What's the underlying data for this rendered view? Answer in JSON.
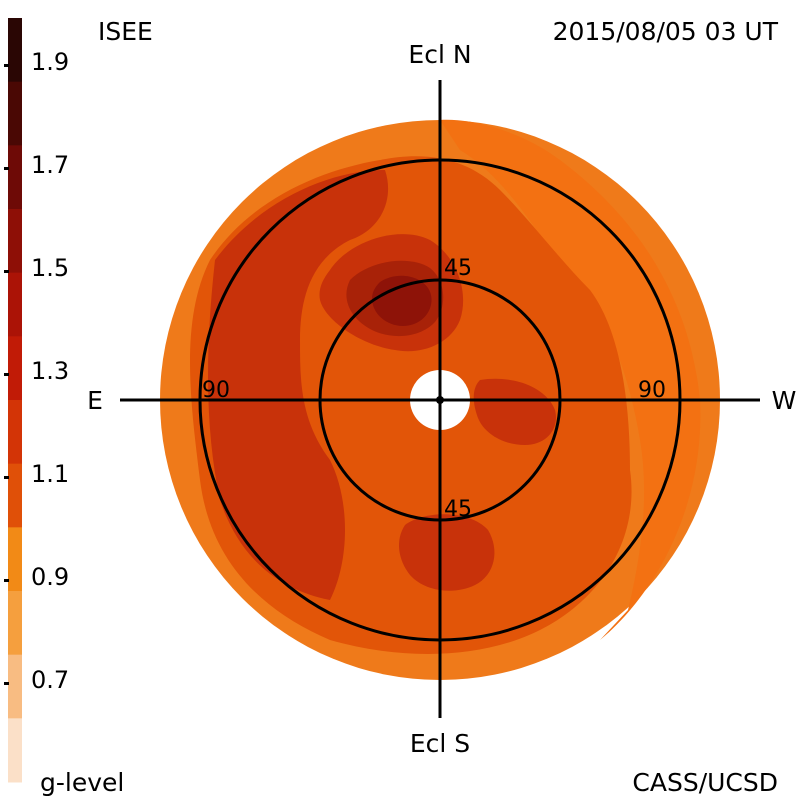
{
  "header": {
    "instrument": "ISEE",
    "timestamp": "2015/08/05 03 UT",
    "credit": "CASS/UCSD"
  },
  "colorbar": {
    "title": "g-level",
    "tick_labels": [
      "1.9",
      "1.7",
      "1.5",
      "1.3",
      "1.1",
      "0.9",
      "0.7"
    ],
    "bands": [
      "#2a0604",
      "#4a0804",
      "#6e0a06",
      "#8e0f06",
      "#ab1306",
      "#c11b06",
      "#d33406",
      "#e05008",
      "#f28a16",
      "#f59f3e",
      "#f8bc82",
      "#fbe0c8"
    ]
  },
  "map": {
    "directions": {
      "north": "Ecl N",
      "south": "Ecl S",
      "east": "E",
      "west": "W"
    },
    "ring_labels": {
      "inner_top": "45",
      "inner_bottom": "45",
      "outer_left": "90",
      "outer_right": "90"
    },
    "colors": {
      "background_disc": "#ef7a1a",
      "western_arc": "#f37112",
      "main_fill": "#e25508",
      "mid_shade": "#d94b08",
      "dark_shade": "#c8320a",
      "deep_shade": "#a82208",
      "core_shade": "#8e1308",
      "hole": "#ffffff",
      "lines": "#000000"
    }
  }
}
